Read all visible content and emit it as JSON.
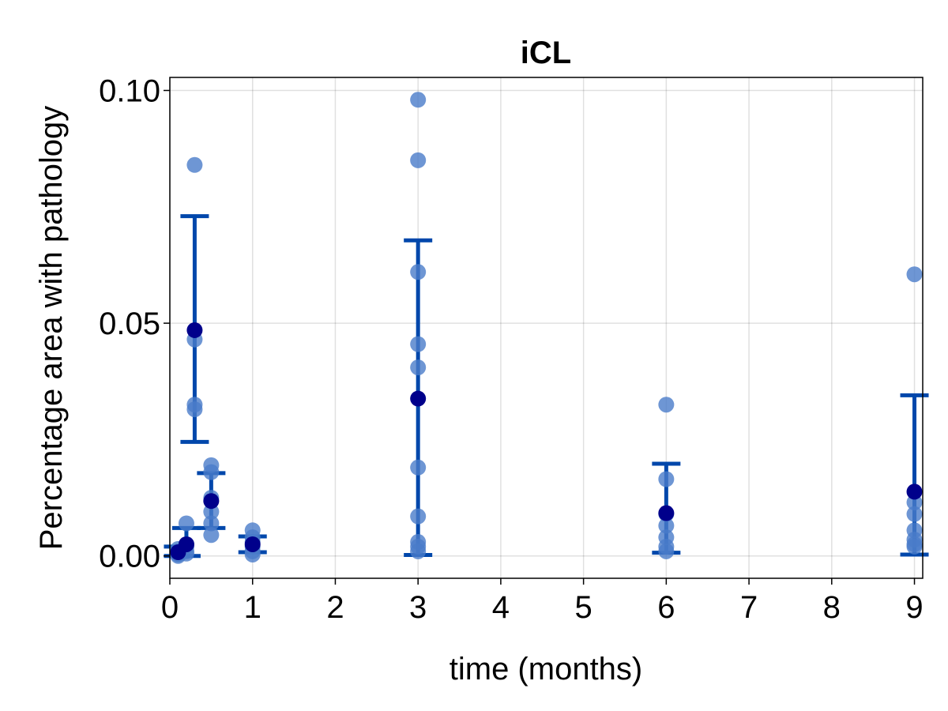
{
  "chart_data": {
    "type": "scatter",
    "title": "iCL",
    "xlabel": "time (months)",
    "ylabel": "Percentage area with pathology",
    "xlim": [
      0,
      9.1
    ],
    "ylim": [
      -0.0048,
      0.1028
    ],
    "xticks": [
      0,
      1,
      2,
      3,
      4,
      5,
      6,
      7,
      8,
      9
    ],
    "xtick_labels": [
      "0",
      "1",
      "2",
      "3",
      "4",
      "5",
      "6",
      "7",
      "8",
      "9"
    ],
    "yticks": [
      0.0,
      0.05,
      0.1
    ],
    "ytick_labels": [
      "0.00",
      "0.05",
      "0.10"
    ],
    "grid": true,
    "colors": {
      "points": "#4a7cc9",
      "mean": "#00008b",
      "errorbar": "#0047ab"
    },
    "groups": [
      {
        "x": 0.1,
        "points": [
          0.0,
          0.0003,
          0.0005,
          0.001,
          0.0015
        ],
        "mean": 0.0008,
        "lower": 0.0,
        "upper": 0.002
      },
      {
        "x": 0.2,
        "points": [
          0.0005,
          0.001,
          0.002,
          0.0025,
          0.007
        ],
        "mean": 0.0025,
        "lower": 0.0,
        "upper": 0.006
      },
      {
        "x": 0.3,
        "points": [
          0.084,
          0.0465,
          0.0325,
          0.0315
        ],
        "mean": 0.0485,
        "lower": 0.0245,
        "upper": 0.073
      },
      {
        "x": 0.5,
        "points": [
          0.0195,
          0.018,
          0.0125,
          0.0095,
          0.007,
          0.0045
        ],
        "mean": 0.0118,
        "lower": 0.006,
        "upper": 0.0178
      },
      {
        "x": 1.0,
        "points": [
          0.0055,
          0.004,
          0.003,
          0.002,
          0.001,
          0.0003
        ],
        "mean": 0.0025,
        "lower": 0.0008,
        "upper": 0.0042
      },
      {
        "x": 3.0,
        "points": [
          0.098,
          0.085,
          0.061,
          0.0455,
          0.0405,
          0.019,
          0.0085,
          0.003,
          0.002,
          0.001
        ],
        "mean": 0.0338,
        "lower": 0.0002,
        "upper": 0.0678
      },
      {
        "x": 6.0,
        "points": [
          0.0325,
          0.0165,
          0.009,
          0.0065,
          0.004,
          0.002,
          0.001
        ],
        "mean": 0.0092,
        "lower": 0.0007,
        "upper": 0.0198
      },
      {
        "x": 9.0,
        "points": [
          0.0605,
          0.0115,
          0.009,
          0.0055,
          0.0035,
          0.0025,
          0.002
        ],
        "mean": 0.0138,
        "lower": 0.0003,
        "upper": 0.0345
      }
    ]
  }
}
